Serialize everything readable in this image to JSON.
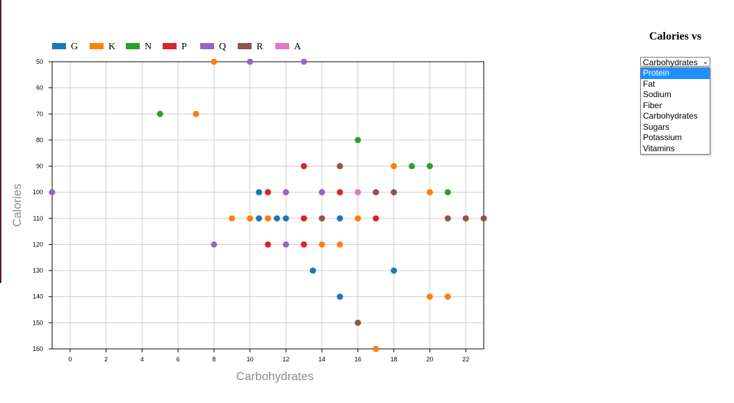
{
  "controls": {
    "title": "Calories vs",
    "selected": "Carbohydrates",
    "options": [
      "Protein",
      "Fat",
      "Sodium",
      "Fiber",
      "Carbohydrates",
      "Sugars",
      "Potassium",
      "Vitamins"
    ],
    "highlighted_option": "Protein"
  },
  "chart_data": {
    "type": "scatter",
    "xlabel": "Carbohydrates",
    "ylabel": "Calories",
    "xlim": [
      -1,
      23
    ],
    "ylim": [
      50,
      160
    ],
    "y_inverted": true,
    "x_ticks": [
      0,
      2,
      4,
      6,
      8,
      10,
      12,
      14,
      16,
      18,
      20,
      22
    ],
    "y_ticks": [
      50,
      60,
      70,
      80,
      90,
      100,
      110,
      120,
      130,
      140,
      150,
      160
    ],
    "grid": true,
    "legend_position": "top-left",
    "series": [
      {
        "name": "G",
        "color": "#1f77b4",
        "points": [
          [
            10.5,
            100
          ],
          [
            10.5,
            110
          ],
          [
            11.5,
            110
          ],
          [
            12,
            110
          ],
          [
            15,
            110
          ],
          [
            13.5,
            130
          ],
          [
            18,
            130
          ],
          [
            15,
            140
          ]
        ]
      },
      {
        "name": "K",
        "color": "#ff7f0e",
        "points": [
          [
            8,
            50
          ],
          [
            7,
            70
          ],
          [
            18,
            90
          ],
          [
            20,
            100
          ],
          [
            9,
            110
          ],
          [
            10,
            110
          ],
          [
            11,
            110
          ],
          [
            16,
            110
          ],
          [
            21,
            110
          ],
          [
            14,
            120
          ],
          [
            15,
            120
          ],
          [
            20,
            140
          ],
          [
            21,
            140
          ],
          [
            17,
            160
          ]
        ]
      },
      {
        "name": "N",
        "color": "#2ca02c",
        "points": [
          [
            5,
            70
          ],
          [
            16,
            80
          ],
          [
            19,
            90
          ],
          [
            20,
            90
          ],
          [
            21,
            100
          ]
        ]
      },
      {
        "name": "P",
        "color": "#d62728",
        "points": [
          [
            13,
            90
          ],
          [
            11,
            100
          ],
          [
            15,
            100
          ],
          [
            13,
            110
          ],
          [
            17,
            110
          ],
          [
            11,
            120
          ],
          [
            13,
            120
          ]
        ]
      },
      {
        "name": "Q",
        "color": "#9467bd",
        "points": [
          [
            10,
            50
          ],
          [
            13,
            50
          ],
          [
            -1,
            100
          ],
          [
            12,
            100
          ],
          [
            14,
            100
          ],
          [
            8,
            120
          ],
          [
            12,
            120
          ]
        ]
      },
      {
        "name": "R",
        "color": "#8c564b",
        "points": [
          [
            15,
            90
          ],
          [
            17,
            100
          ],
          [
            18,
            100
          ],
          [
            14,
            110
          ],
          [
            21,
            110
          ],
          [
            22,
            110
          ],
          [
            23,
            110
          ],
          [
            16,
            150
          ]
        ]
      },
      {
        "name": "A",
        "color": "#e377c2",
        "points": [
          [
            16,
            100
          ]
        ]
      }
    ]
  }
}
